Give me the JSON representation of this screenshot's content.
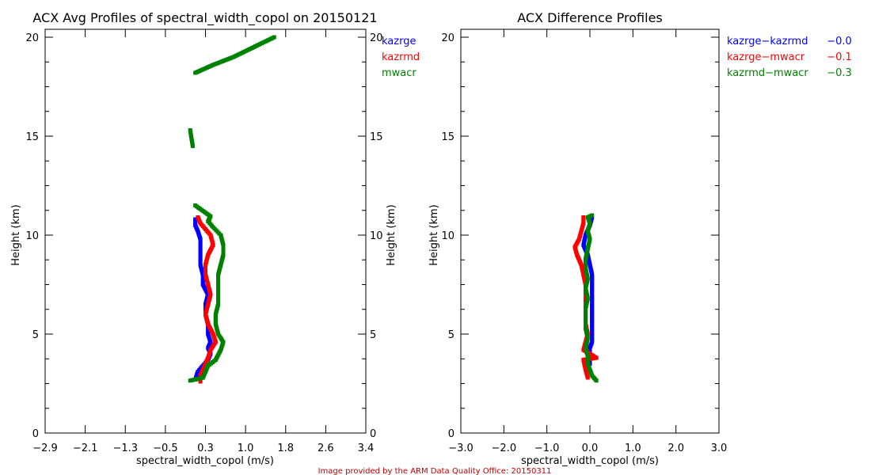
{
  "footer": {
    "credit": "Image provided by the ARM Data Quality Office: 20150311",
    "credit_color": "#c00000"
  },
  "chart_data": [
    {
      "type": "scatter",
      "title": "ACX Avg Profiles of spectral_width_copol on 20150121",
      "xlabel": "spectral_width_copol (m/s)",
      "ylabel": "Height (km)",
      "ylabel_right": "Height (km)",
      "xlim": [
        -2.9,
        3.4
      ],
      "ylim": [
        0,
        20
      ],
      "xticks": [
        "-2.9",
        "-2.1",
        "-1.3",
        "-0.5",
        "0.3",
        "1.0",
        "1.8",
        "2.6",
        "3.4"
      ],
      "yticks": [
        "0",
        "5",
        "10",
        "15",
        "20"
      ],
      "grid": false,
      "legend_position": "right",
      "legend": [
        {
          "name": "kazrge",
          "color": "#0000ff"
        },
        {
          "name": "kazrmd",
          "color": "#ff0000"
        },
        {
          "name": "mwacr",
          "color": "#008000"
        }
      ],
      "series": [
        {
          "name": "kazrge",
          "color": "#0000ff",
          "points": [
            [
              0.05,
              2.7
            ],
            [
              0.1,
              3.1
            ],
            [
              0.2,
              3.4
            ],
            [
              0.3,
              3.7
            ],
            [
              0.35,
              4.0
            ],
            [
              0.3,
              4.3
            ],
            [
              0.35,
              4.6
            ],
            [
              0.3,
              5.0
            ],
            [
              0.3,
              5.5
            ],
            [
              0.25,
              6.0
            ],
            [
              0.25,
              6.5
            ],
            [
              0.3,
              7.0
            ],
            [
              0.2,
              7.5
            ],
            [
              0.2,
              8.0
            ],
            [
              0.15,
              8.5
            ],
            [
              0.15,
              9.0
            ],
            [
              0.15,
              9.4
            ],
            [
              0.15,
              9.8
            ],
            [
              0.1,
              10.2
            ],
            [
              0.05,
              10.5
            ],
            [
              0.05,
              10.8
            ]
          ]
        },
        {
          "name": "kazrmd",
          "color": "#ff0000",
          "points": [
            [
              0.15,
              2.6
            ],
            [
              0.15,
              2.9
            ],
            [
              0.2,
              3.2
            ],
            [
              0.25,
              3.5
            ],
            [
              0.3,
              3.8
            ],
            [
              0.35,
              4.2
            ],
            [
              0.45,
              4.6
            ],
            [
              0.4,
              5.0
            ],
            [
              0.3,
              5.5
            ],
            [
              0.25,
              6.0
            ],
            [
              0.3,
              6.5
            ],
            [
              0.35,
              7.0
            ],
            [
              0.3,
              7.5
            ],
            [
              0.25,
              8.0
            ],
            [
              0.25,
              8.5
            ],
            [
              0.3,
              9.0
            ],
            [
              0.4,
              9.5
            ],
            [
              0.35,
              10.0
            ],
            [
              0.25,
              10.3
            ],
            [
              0.15,
              10.6
            ],
            [
              0.1,
              10.9
            ]
          ]
        },
        {
          "name": "mwacr",
          "color": "#008000",
          "points": [
            [
              -0.05,
              2.65
            ],
            [
              0.2,
              2.8
            ],
            [
              0.25,
              3.1
            ],
            [
              0.3,
              3.4
            ],
            [
              0.45,
              3.7
            ],
            [
              0.55,
              4.2
            ],
            [
              0.6,
              4.6
            ],
            [
              0.5,
              5.0
            ],
            [
              0.45,
              5.5
            ],
            [
              0.45,
              6.0
            ],
            [
              0.5,
              6.5
            ],
            [
              0.5,
              7.0
            ],
            [
              0.5,
              7.5
            ],
            [
              0.5,
              8.0
            ],
            [
              0.55,
              8.5
            ],
            [
              0.6,
              9.0
            ],
            [
              0.6,
              9.5
            ],
            [
              0.55,
              10.0
            ],
            [
              0.4,
              10.4
            ],
            [
              0.3,
              10.7
            ],
            [
              0.35,
              10.95
            ],
            [
              0.05,
              11.5
            ],
            [
              0.0,
              14.5
            ],
            [
              -0.05,
              15.3
            ],
            [
              0.05,
              18.2
            ],
            [
              0.4,
              18.6
            ],
            [
              0.8,
              19.0
            ],
            [
              1.2,
              19.5
            ],
            [
              1.6,
              20.0
            ]
          ]
        }
      ]
    },
    {
      "type": "scatter",
      "title": "ACX Difference Profiles",
      "xlabel": "spectral_width_copol (m/s)",
      "ylabel": "Height (km)",
      "xlim": [
        -3.0,
        3.0
      ],
      "ylim": [
        0,
        20
      ],
      "xticks": [
        "-3.0",
        "-2.0",
        "-1.0",
        "0.0",
        "1.0",
        "2.0",
        "3.0"
      ],
      "yticks": [
        "0",
        "5",
        "10",
        "15",
        "20"
      ],
      "grid": false,
      "legend_position": "right",
      "legend": [
        {
          "name": "kazrge-kazrmd",
          "value": "-0.0",
          "color": "#0000ff"
        },
        {
          "name": "kazrge-mwacr",
          "value": "-0.1",
          "color": "#ff0000"
        },
        {
          "name": "kazrmd-mwacr",
          "value": "-0.3",
          "color": "#008000"
        }
      ],
      "series": [
        {
          "name": "kazrge-kazrmd",
          "color": "#0000ff",
          "points": [
            [
              0.0,
              3.5
            ],
            [
              0.0,
              3.9
            ],
            [
              0.0,
              4.3
            ],
            [
              0.05,
              4.6
            ],
            [
              0.05,
              5.0
            ],
            [
              0.05,
              5.5
            ],
            [
              0.05,
              6.0
            ],
            [
              0.05,
              6.5
            ],
            [
              0.05,
              7.0
            ],
            [
              0.05,
              7.5
            ],
            [
              0.05,
              8.0
            ],
            [
              0.0,
              8.5
            ],
            [
              -0.05,
              9.0
            ],
            [
              -0.15,
              9.5
            ],
            [
              -0.1,
              10.0
            ],
            [
              0.0,
              10.5
            ],
            [
              0.05,
              10.9
            ]
          ]
        },
        {
          "name": "kazrge-mwacr",
          "color": "#ff0000",
          "points": [
            [
              -0.05,
              2.8
            ],
            [
              -0.1,
              3.2
            ],
            [
              -0.15,
              3.7
            ],
            [
              0.15,
              3.8
            ],
            [
              -0.15,
              4.2
            ],
            [
              -0.1,
              4.6
            ],
            [
              -0.05,
              5.0
            ],
            [
              -0.1,
              5.5
            ],
            [
              -0.1,
              6.0
            ],
            [
              -0.1,
              6.5
            ],
            [
              -0.1,
              7.0
            ],
            [
              -0.1,
              7.5
            ],
            [
              -0.15,
              8.0
            ],
            [
              -0.2,
              8.5
            ],
            [
              -0.3,
              9.0
            ],
            [
              -0.35,
              9.4
            ],
            [
              -0.25,
              9.8
            ],
            [
              -0.2,
              10.2
            ],
            [
              -0.15,
              10.6
            ],
            [
              -0.15,
              10.9
            ]
          ]
        },
        {
          "name": "kazrmd-mwacr",
          "color": "#008000",
          "points": [
            [
              0.15,
              2.65
            ],
            [
              0.05,
              2.9
            ],
            [
              0.0,
              3.2
            ],
            [
              -0.05,
              3.5
            ],
            [
              -0.05,
              3.9
            ],
            [
              -0.1,
              4.3
            ],
            [
              -0.05,
              4.8
            ],
            [
              -0.1,
              5.3
            ],
            [
              -0.1,
              5.8
            ],
            [
              -0.1,
              6.3
            ],
            [
              -0.05,
              6.8
            ],
            [
              -0.1,
              7.3
            ],
            [
              -0.05,
              7.8
            ],
            [
              -0.1,
              8.3
            ],
            [
              -0.1,
              8.8
            ],
            [
              -0.05,
              9.3
            ],
            [
              0.0,
              9.8
            ],
            [
              -0.05,
              10.2
            ],
            [
              0.0,
              10.6
            ],
            [
              -0.05,
              10.9
            ],
            [
              0.05,
              11.0
            ]
          ]
        }
      ]
    }
  ]
}
